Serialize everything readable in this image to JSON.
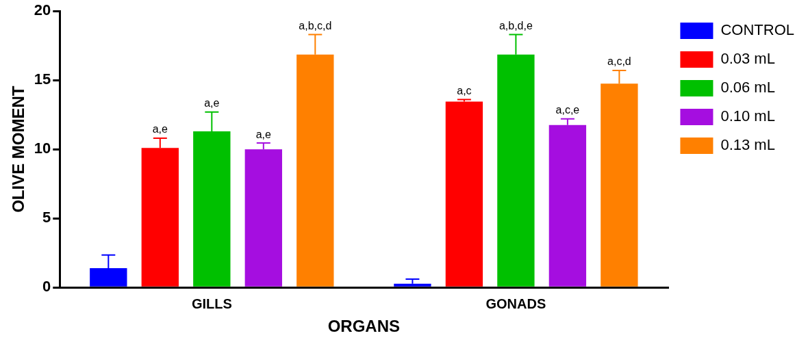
{
  "chart_data": {
    "type": "bar",
    "xlabel": "ORGANS",
    "ylabel": "OLIVE MOMENT",
    "categories": [
      "GILLS",
      "GONADS"
    ],
    "series": [
      {
        "name": "CONTROL",
        "color": "#0000ff",
        "values": [
          1.4,
          0.27
        ],
        "errors": [
          [
            1.4,
            2.35
          ],
          [
            0.27,
            0.6
          ]
        ],
        "value_labels": [
          null,
          null
        ]
      },
      {
        "name": "0.03 mL",
        "color": "#ff0000",
        "values": [
          10.1,
          13.45
        ],
        "errors": [
          [
            10.1,
            10.8
          ],
          [
            13.45,
            13.6
          ]
        ],
        "value_labels": [
          "a,e",
          "a,c"
        ]
      },
      {
        "name": "0.06 mL",
        "color": "#00c000",
        "values": [
          11.3,
          16.85
        ],
        "errors": [
          [
            11.3,
            12.7
          ],
          [
            16.85,
            18.3
          ]
        ],
        "value_labels": [
          "a,e",
          "a,b,d,e"
        ]
      },
      {
        "name": "0.10 mL",
        "color": "#a50ee0",
        "values": [
          10.0,
          11.75
        ],
        "errors": [
          [
            10.0,
            10.45
          ],
          [
            11.75,
            12.2
          ]
        ],
        "value_labels": [
          "a,e",
          "a,c,e"
        ]
      },
      {
        "name": "0.13 mL",
        "color": "#ff8000",
        "values": [
          16.85,
          14.75
        ],
        "errors": [
          [
            16.85,
            18.3
          ],
          [
            14.75,
            15.7
          ]
        ],
        "value_labels": [
          "a,b,c,d",
          "a,c,d"
        ]
      }
    ],
    "ylim": [
      0,
      20
    ],
    "yticks": [
      0,
      5,
      10,
      15,
      20
    ],
    "grid": false,
    "legend": "right"
  }
}
